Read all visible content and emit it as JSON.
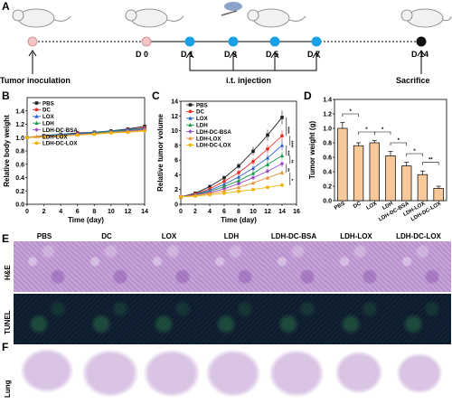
{
  "panel_labels": {
    "a": "A",
    "b": "B",
    "c": "C",
    "d": "D",
    "e": "E",
    "f": "F"
  },
  "timeline": {
    "days": [
      "D 0",
      "D 1",
      "D 3",
      "D 5",
      "D 7",
      "D 14"
    ],
    "tumor_inoculation": "Tumor inoculation",
    "injection": "i.t. injection",
    "sacrifice": "Sacrifice",
    "colors": {
      "injection_dot": "#1aa0e6",
      "inoc_dot": "#f2c4c4",
      "end_dot": "#111111"
    }
  },
  "chart_data": [
    {
      "type": "line",
      "id": "B",
      "ylabel": "Relative body weight",
      "xlabel": "Time (day)",
      "x": [
        0,
        2,
        4,
        6,
        8,
        10,
        12,
        14
      ],
      "xlim": [
        0,
        14
      ],
      "ylim": [
        0.0,
        1.6
      ],
      "yticks": [
        0.0,
        0.2,
        0.4,
        0.6,
        0.8,
        1.0,
        1.2,
        1.4
      ],
      "legend": [
        "PBS",
        "DC",
        "LOX",
        "LDH",
        "LDH-DC-BSA",
        "LDH-LOX",
        "LDH-DC-LOX"
      ],
      "series": [
        {
          "name": "PBS",
          "values": [
            1.0,
            1.03,
            1.05,
            1.07,
            1.08,
            1.1,
            1.13,
            1.17
          ]
        },
        {
          "name": "DC",
          "values": [
            1.0,
            1.02,
            1.04,
            1.06,
            1.07,
            1.09,
            1.12,
            1.15
          ]
        },
        {
          "name": "LOX",
          "values": [
            1.0,
            1.03,
            1.05,
            1.06,
            1.08,
            1.1,
            1.12,
            1.14
          ]
        },
        {
          "name": "LDH",
          "values": [
            1.0,
            1.02,
            1.04,
            1.05,
            1.07,
            1.09,
            1.11,
            1.13
          ]
        },
        {
          "name": "LDH-DC-BSA",
          "values": [
            1.0,
            1.01,
            1.03,
            1.05,
            1.06,
            1.08,
            1.1,
            1.12
          ]
        },
        {
          "name": "LDH-LOX",
          "values": [
            1.0,
            1.02,
            1.03,
            1.04,
            1.06,
            1.08,
            1.09,
            1.11
          ]
        },
        {
          "name": "LDH-DC-LOX",
          "values": [
            1.0,
            1.01,
            1.02,
            1.04,
            1.05,
            1.07,
            1.08,
            1.1
          ]
        }
      ]
    },
    {
      "type": "line",
      "id": "C",
      "ylabel": "Relative tumor volume",
      "xlabel": "Time (day)",
      "x": [
        0,
        2,
        4,
        6,
        8,
        10,
        12,
        14
      ],
      "xlim": [
        0,
        16
      ],
      "ylim": [
        0,
        14
      ],
      "yticks": [
        0,
        2,
        4,
        6,
        8,
        10,
        12,
        14
      ],
      "xticks": [
        0,
        2,
        4,
        6,
        8,
        10,
        12,
        14,
        16
      ],
      "legend": [
        "PBS",
        "DC",
        "LOX",
        "LDH",
        "LDH-DC-BSA",
        "LDH-LOX",
        "LDH-DC-LOX"
      ],
      "significance": [
        "****",
        "****",
        "***",
        "**",
        "**",
        "*"
      ],
      "series": [
        {
          "name": "PBS",
          "values": [
            1.0,
            1.5,
            2.4,
            3.6,
            5.2,
            7.2,
            9.4,
            11.8
          ]
        },
        {
          "name": "DC",
          "values": [
            1.0,
            1.4,
            2.1,
            3.1,
            4.3,
            5.8,
            7.5,
            9.3
          ]
        },
        {
          "name": "LOX",
          "values": [
            1.0,
            1.35,
            1.9,
            2.7,
            3.7,
            4.9,
            6.3,
            8.0
          ]
        },
        {
          "name": "LDH",
          "values": [
            1.0,
            1.3,
            1.75,
            2.4,
            3.2,
            4.2,
            5.4,
            6.6
          ]
        },
        {
          "name": "LDH-DC-BSA",
          "values": [
            1.0,
            1.25,
            1.6,
            2.1,
            2.8,
            3.6,
            4.5,
            5.5
          ]
        },
        {
          "name": "LDH-LOX",
          "values": [
            1.0,
            1.2,
            1.45,
            1.8,
            2.3,
            2.9,
            3.6,
            4.3
          ]
        },
        {
          "name": "LDH-DC-LOX",
          "values": [
            1.0,
            1.1,
            1.3,
            1.5,
            1.75,
            2.0,
            2.3,
            2.6
          ]
        }
      ]
    },
    {
      "type": "bar",
      "id": "D",
      "ylabel": "Tumor weight (g)",
      "categories": [
        "PBS",
        "DC",
        "LOX",
        "LDH",
        "LDH-DC-BSA",
        "LDH-LOX",
        "LDH-DC-LOX"
      ],
      "values": [
        1.0,
        0.76,
        0.8,
        0.62,
        0.48,
        0.36,
        0.17
      ],
      "errors": [
        0.08,
        0.04,
        0.03,
        0.06,
        0.05,
        0.05,
        0.03
      ],
      "ylim": [
        0.0,
        1.4
      ],
      "yticks": [
        0.0,
        0.2,
        0.4,
        0.6,
        0.8,
        1.0,
        1.2,
        1.4
      ],
      "significance": [
        "*",
        "*",
        "*",
        "*",
        "*",
        "**"
      ],
      "bar_color": "#f7c99a"
    }
  ],
  "histology": {
    "columns": [
      "PBS",
      "DC",
      "LOX",
      "LDH",
      "LDH-DC-BSA",
      "LDH-LOX",
      "LDH-DC-LOX"
    ],
    "rows": {
      "he": "H&E",
      "tunel": "TUNEL",
      "lung": "Lung"
    }
  },
  "series_colors": [
    "#222222",
    "#e8302a",
    "#2a62c9",
    "#1e9a4a",
    "#9b4fc6",
    "#e8913a",
    "#f0b400"
  ]
}
